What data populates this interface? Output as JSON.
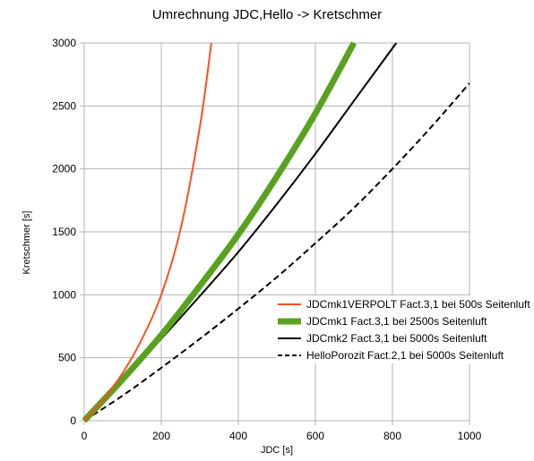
{
  "chart_data": {
    "type": "line",
    "title": "Umrechnung JDC,Hello -> Kretschmer",
    "xlabel": "JDC [s]",
    "ylabel": "Kretschmer [s]",
    "xlim": [
      0,
      1000
    ],
    "ylim": [
      0,
      3000
    ],
    "x_ticks": [
      0,
      200,
      400,
      600,
      800,
      1000
    ],
    "y_ticks": [
      0,
      500,
      1000,
      1500,
      2000,
      2500,
      3000
    ],
    "grid": true,
    "legend_position": "bottom-right",
    "series": [
      {
        "name": "JDCmk1VERPOLT Fact.3,1 bei 500s Seitenluft",
        "color": "#ff4f1f",
        "style": "solid",
        "x": [
          0,
          50,
          100,
          150,
          200,
          250,
          300,
          330
        ],
        "y": [
          0,
          170,
          380,
          650,
          1000,
          1520,
          2330,
          3000
        ]
      },
      {
        "name": "JDCmk1 Fact.3,1 bei 2500s Seitenluft",
        "color": "#58a21f",
        "style": "solid-thick",
        "x": [
          0,
          100,
          200,
          300,
          400,
          500,
          600,
          700
        ],
        "y": [
          0,
          330,
          680,
          1070,
          1480,
          1940,
          2440,
          3000
        ]
      },
      {
        "name": "JDCmk2 Fact.3,1 bei 5000s Seitenluft",
        "color": "#000000",
        "style": "solid",
        "x": [
          0,
          100,
          200,
          300,
          400,
          500,
          600,
          700,
          810
        ],
        "y": [
          0,
          320,
          650,
          990,
          1340,
          1720,
          2120,
          2540,
          3000
        ]
      },
      {
        "name": "HelloPorozit Fact.2,1 bei 5000s Seitenluft",
        "color": "#000000",
        "style": "dashed",
        "x": [
          0,
          100,
          200,
          300,
          400,
          500,
          600,
          700,
          800,
          900,
          1000
        ],
        "y": [
          0,
          200,
          420,
          650,
          890,
          1140,
          1410,
          1690,
          2000,
          2330,
          2680
        ]
      }
    ]
  }
}
